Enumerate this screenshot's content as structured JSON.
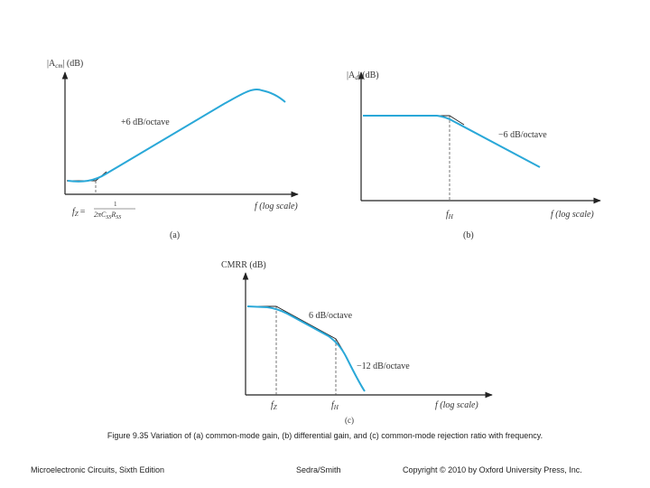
{
  "colors": {
    "curve": "#2aa8d8",
    "axis": "#222222",
    "asymptote": "#222222",
    "dashed": "#555555",
    "text": "#333333"
  },
  "panels": {
    "a": {
      "ylabel": "|A_cm| (dB)",
      "ylabel_main": "|A",
      "ylabel_sub": "cm",
      "ylabel_tail": "| (dB)",
      "xlabel": "f (log scale)",
      "slope_label": "+6 dB/octave",
      "corner_label": "f",
      "corner_sub": "Z",
      "corner_eq": "=",
      "formula_num": "1",
      "formula_den": "2πC",
      "formula_den_sub1": "SS",
      "formula_den_mid": "R",
      "formula_den_sub2": "SS",
      "tag": "(a)"
    },
    "b": {
      "ylabel_main": "|A",
      "ylabel_sub": "d",
      "ylabel_tail": "| (dB)",
      "xlabel": "f (log scale)",
      "slope_label": "−6 dB/octave",
      "corner_label": "f",
      "corner_sub": "H",
      "tag": "(b)"
    },
    "c": {
      "ylabel": "CMRR (dB)",
      "xlabel": "f (log scale)",
      "slope1_label": "6 dB/octave",
      "slope2_label": "−12 dB/octave",
      "corner1_label": "f",
      "corner1_sub": "Z",
      "corner2_label": "f",
      "corner2_sub": "H",
      "tag": "(c)"
    }
  },
  "caption": "Figure 9.35 Variation of (a) common-mode gain, (b) differential gain, and (c) common-mode rejection ratio with frequency.",
  "footer": {
    "left": "Microelectronic Circuits, Sixth Edition",
    "center": "Sedra/Smith",
    "right": "Copyright © 2010 by Oxford University Press, Inc."
  }
}
